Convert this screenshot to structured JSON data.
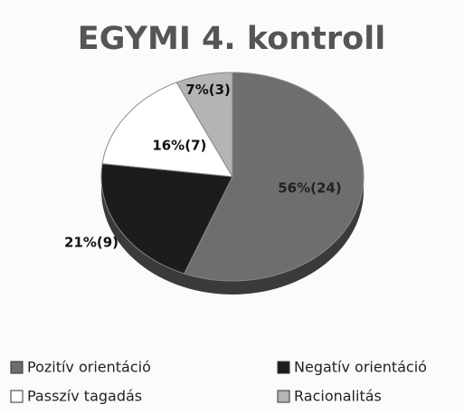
{
  "chart_data": {
    "type": "pie",
    "title": "EGYMI 4. kontroll",
    "categories": [
      "Pozitív orientáció",
      "Negatív orientáció",
      "Passzív tagadás",
      "Racionalitás"
    ],
    "values": [
      56,
      21,
      16,
      7
    ],
    "value_labels": [
      "56%(24)",
      "21%(9)",
      "16%(7)",
      "7%(3)"
    ],
    "colors": [
      "#6e6e6e",
      "#1c1c1c",
      "#ffffff",
      "#b4b4b4"
    ],
    "legend": "bottom"
  }
}
